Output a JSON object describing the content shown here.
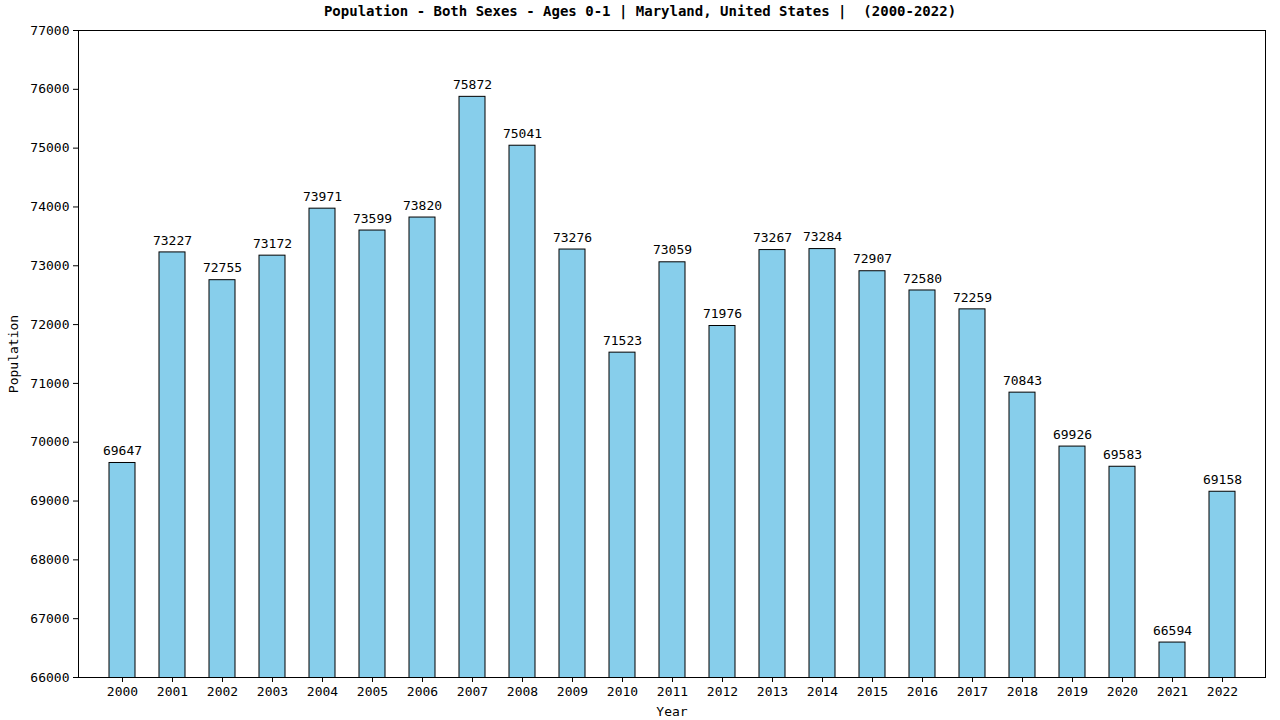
{
  "chart_data": {
    "type": "bar",
    "title": "Population - Both Sexes - Ages 0-1 | Maryland, United States |  (2000-2022)",
    "x_label": "Year",
    "y_label": "Population",
    "categories": [
      "2000",
      "2001",
      "2002",
      "2003",
      "2004",
      "2005",
      "2006",
      "2007",
      "2008",
      "2009",
      "2010",
      "2011",
      "2012",
      "2013",
      "2014",
      "2015",
      "2016",
      "2017",
      "2018",
      "2019",
      "2020",
      "2021",
      "2022"
    ],
    "values": [
      69647,
      73227,
      72755,
      73172,
      73971,
      73599,
      73820,
      75872,
      75041,
      73276,
      71523,
      73059,
      71976,
      73267,
      73284,
      72907,
      72580,
      72259,
      70843,
      69926,
      69583,
      66594,
      69158
    ],
    "color": "#87ceeb",
    "ylim": [
      66000,
      77000
    ],
    "yticks": [
      66000,
      67000,
      68000,
      69000,
      70000,
      71000,
      72000,
      73000,
      74000,
      75000,
      76000,
      77000
    ],
    "grid": false,
    "data_labels": true
  }
}
